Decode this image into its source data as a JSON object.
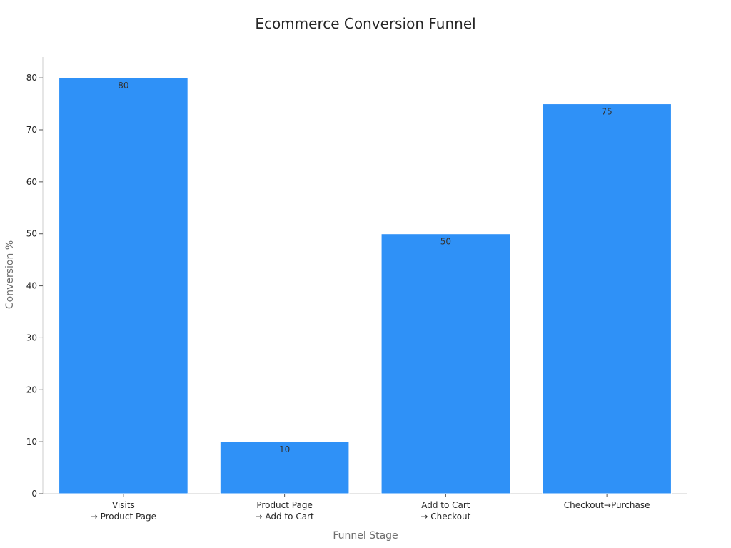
{
  "chart_data": {
    "type": "bar",
    "title": "Ecommerce Conversion Funnel",
    "xlabel": "Funnel Stage",
    "ylabel": "Conversion %",
    "categories": [
      [
        "Visits",
        "→ Product Page"
      ],
      [
        "Product Page",
        "→ Add to Cart"
      ],
      [
        "Add to Cart",
        "→ Checkout"
      ],
      [
        "Checkout→Purchase"
      ]
    ],
    "values": [
      80,
      10,
      50,
      75
    ],
    "data_labels": [
      "80",
      "10",
      "50",
      "75"
    ],
    "ylim": [
      0,
      84
    ],
    "yticks": [
      0,
      10,
      20,
      30,
      40,
      50,
      60,
      70,
      80
    ],
    "grid": false,
    "legend": "none",
    "colors": {
      "bar": "#2f91f7",
      "bar_edge": "#ffffff"
    }
  }
}
